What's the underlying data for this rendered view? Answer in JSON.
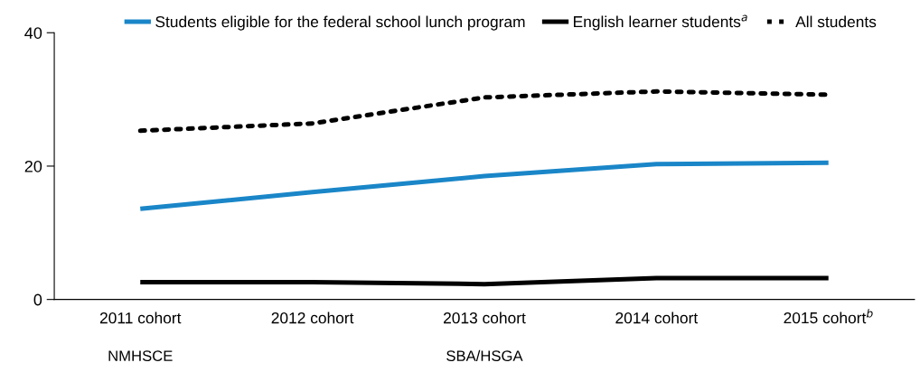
{
  "chart_data": {
    "type": "line",
    "categories": [
      "2011 cohort",
      "2012 cohort",
      "2013 cohort",
      "2014 cohort",
      "2015 cohort$^{b}$"
    ],
    "series": [
      {
        "name": "Students eligible for the federal school lunch program",
        "color": "#1a86c8",
        "values": [
          13.6,
          16.1,
          18.5,
          20.3,
          20.5
        ]
      },
      {
        "name": "English learner students$^{a}$",
        "color": "#000000",
        "values": [
          2.6,
          2.6,
          2.3,
          3.2,
          3.2
        ]
      },
      {
        "name": "All students",
        "color": "#000000",
        "line_style": "dotted",
        "values": [
          25.3,
          26.4,
          30.3,
          31.2,
          30.7
        ]
      }
    ],
    "ylim": [
      0,
      40
    ],
    "yticks": [
      0,
      20,
      40
    ],
    "grid": false,
    "legend": "top",
    "marker": "none",
    "line_style": "solid",
    "annotations": [
      "NMHSCE",
      "SBA/HSGA"
    ]
  }
}
